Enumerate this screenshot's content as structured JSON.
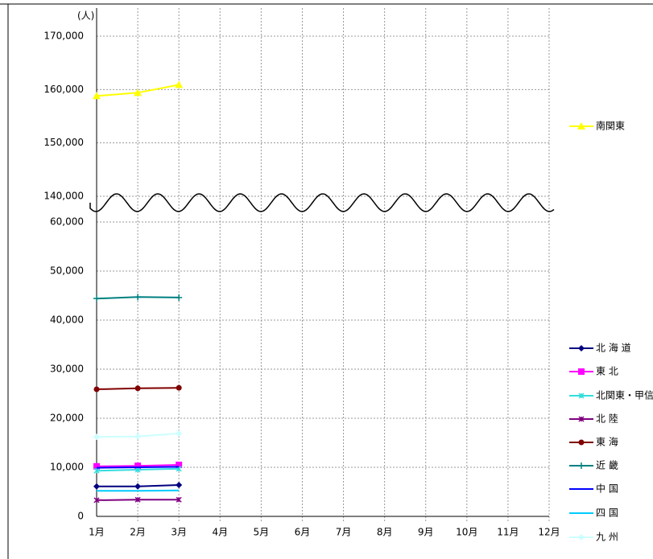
{
  "chart_data": {
    "type": "line",
    "y_axis_label": "(人)",
    "categories": [
      "1月",
      "2月",
      "3月",
      "4月",
      "5月",
      "6月",
      "7月",
      "8月",
      "9月",
      "10月",
      "11月",
      "12月"
    ],
    "ylim": [
      0,
      170000
    ],
    "axis_break": [
      60000,
      140000
    ],
    "yticks": [
      {
        "value": 0,
        "label": "0"
      },
      {
        "value": 10000,
        "label": "10,000"
      },
      {
        "value": 20000,
        "label": "20,000"
      },
      {
        "value": 30000,
        "label": "30,000"
      },
      {
        "value": 40000,
        "label": "40,000"
      },
      {
        "value": 50000,
        "label": "50,000"
      },
      {
        "value": 60000,
        "label": "60,000"
      },
      {
        "value": 140000,
        "label": "140,000"
      },
      {
        "value": 150000,
        "label": "150,000"
      },
      {
        "value": 160000,
        "label": "160,000"
      },
      {
        "value": 170000,
        "label": "170,000"
      }
    ],
    "grid": true,
    "series": [
      {
        "name": "南関東",
        "color": "#ffff00",
        "marker": "triangle",
        "values": [
          158800,
          159400,
          160900,
          null,
          null,
          null,
          null,
          null,
          null,
          null,
          null,
          null
        ]
      },
      {
        "name": "北 海 道",
        "color": "#000080",
        "marker": "diamond",
        "values": [
          6100,
          6100,
          6400,
          null,
          null,
          null,
          null,
          null,
          null,
          null,
          null,
          null
        ]
      },
      {
        "name": "東 北",
        "color": "#ff00ff",
        "marker": "square",
        "values": [
          10200,
          10300,
          10500,
          null,
          null,
          null,
          null,
          null,
          null,
          null,
          null,
          null
        ]
      },
      {
        "name": "北関東・甲信",
        "color": "#33dddd",
        "marker": "star",
        "values": [
          9300,
          9500,
          9700,
          null,
          null,
          null,
          null,
          null,
          null,
          null,
          null,
          null
        ]
      },
      {
        "name": "北 陸",
        "color": "#800080",
        "marker": "star",
        "values": [
          3300,
          3400,
          3400,
          null,
          null,
          null,
          null,
          null,
          null,
          null,
          null,
          null
        ]
      },
      {
        "name": "東 海",
        "color": "#800000",
        "marker": "circle",
        "values": [
          25900,
          26100,
          26200,
          null,
          null,
          null,
          null,
          null,
          null,
          null,
          null,
          null
        ]
      },
      {
        "name": "近 畿",
        "color": "#008080",
        "marker": "plus",
        "values": [
          44400,
          44700,
          44600,
          null,
          null,
          null,
          null,
          null,
          null,
          null,
          null,
          null
        ]
      },
      {
        "name": "中 国",
        "color": "#0000ff",
        "marker": "none",
        "values": [
          9900,
          10000,
          10100,
          null,
          null,
          null,
          null,
          null,
          null,
          null,
          null,
          null
        ]
      },
      {
        "name": "四 国",
        "color": "#00ccff",
        "marker": "none",
        "values": [
          5200,
          5200,
          5300,
          null,
          null,
          null,
          null,
          null,
          null,
          null,
          null,
          null
        ]
      },
      {
        "name": "九 州",
        "color": "#ccffff",
        "marker": "diamond",
        "values": [
          16200,
          16300,
          16900,
          null,
          null,
          null,
          null,
          null,
          null,
          null,
          null,
          null
        ]
      }
    ]
  }
}
